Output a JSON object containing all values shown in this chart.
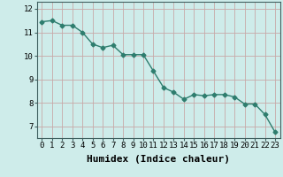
{
  "x": [
    0,
    1,
    2,
    3,
    4,
    5,
    6,
    7,
    8,
    9,
    10,
    11,
    12,
    13,
    14,
    15,
    16,
    17,
    18,
    19,
    20,
    21,
    22,
    23
  ],
  "y": [
    11.45,
    11.5,
    11.3,
    11.3,
    11.0,
    10.5,
    10.35,
    10.45,
    10.05,
    10.05,
    10.05,
    9.35,
    8.65,
    8.45,
    8.15,
    8.35,
    8.3,
    8.35,
    8.35,
    8.25,
    7.95,
    7.95,
    7.5,
    6.75
  ],
  "line_color": "#2e7d6e",
  "marker": "D",
  "marker_size": 2.5,
  "background_color": "#ceecea",
  "grid_color": "#c8a8a8",
  "xlabel": "Humidex (Indice chaleur)",
  "ylim": [
    6.5,
    12.3
  ],
  "xlim": [
    -0.5,
    23.5
  ],
  "yticks": [
    7,
    8,
    9,
    10,
    11,
    12
  ],
  "xticks": [
    0,
    1,
    2,
    3,
    4,
    5,
    6,
    7,
    8,
    9,
    10,
    11,
    12,
    13,
    14,
    15,
    16,
    17,
    18,
    19,
    20,
    21,
    22,
    23
  ],
  "tick_fontsize": 6.5,
  "xlabel_fontsize": 8,
  "axis_color": "#406060"
}
